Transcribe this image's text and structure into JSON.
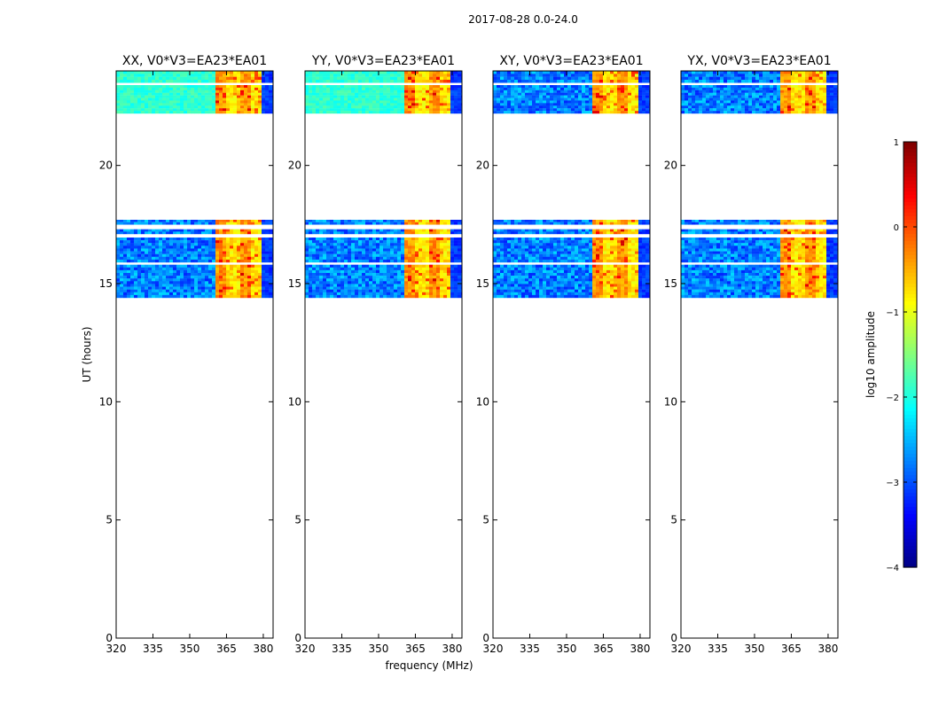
{
  "figure": {
    "suptitle": "2017-08-28 0.0-24.0",
    "xlabel": "frequency (MHz)",
    "ylabel": "UT (hours)"
  },
  "chart_data": {
    "type": "heatmap",
    "x_range_mhz": [
      320,
      384
    ],
    "y_range_hours": [
      0,
      24
    ],
    "x_ticks": [
      320,
      335,
      350,
      365,
      380
    ],
    "y_ticks": [
      0,
      5,
      10,
      15,
      20
    ],
    "panels": [
      {
        "title": "XX, V0*V3=EA23*EA01",
        "pol": "XX"
      },
      {
        "title": "YY, V0*V3=EA23*EA01",
        "pol": "YY"
      },
      {
        "title": "XY, V0*V3=EA23*EA01",
        "pol": "XY"
      },
      {
        "title": "YX, V0*V3=EA23*EA01",
        "pol": "YX"
      }
    ],
    "data_blocks_hours": [
      {
        "start": 14.4,
        "end": 15.8
      },
      {
        "start": 15.9,
        "end": 16.95
      },
      {
        "start": 17.1,
        "end": 17.3
      },
      {
        "start": 17.5,
        "end": 17.7
      },
      {
        "start": 22.2,
        "end": 23.4
      },
      {
        "start": 23.5,
        "end": 24.0
      }
    ],
    "strong_signal_mhz": [
      360,
      380
    ],
    "colorbar": {
      "label": "log10 amplitude",
      "range": [
        -4,
        1
      ],
      "ticks": [
        1,
        0,
        -1,
        -2,
        -3,
        -4
      ],
      "tick_labels": [
        "1",
        "0",
        "−1",
        "−2",
        "−3",
        "−4"
      ],
      "colormap": "jet"
    }
  }
}
